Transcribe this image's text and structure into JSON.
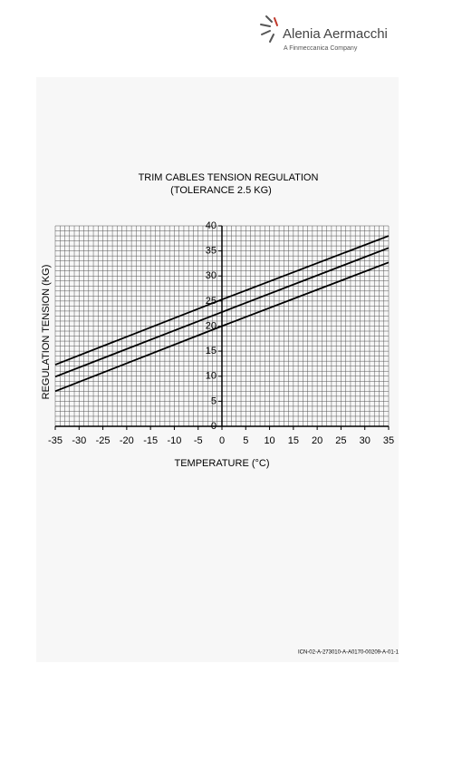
{
  "logo": {
    "name": "Alenia Aermacchi",
    "tagline": "A Finmeccanica Company"
  },
  "chart_data": {
    "type": "line",
    "title": "TRIM CABLES TENSION REGULATION",
    "subtitle": "(TOLERANCE 2.5 KG)",
    "x_label": "TEMPERATURE (°C)",
    "y_label": "REGULATION TENSION (KG)",
    "x": [
      -35,
      0,
      35
    ],
    "series": [
      {
        "color": "#000000",
        "values": [
          12.3,
          25.3,
          38.0
        ]
      },
      {
        "color": "#000000",
        "values": [
          9.9,
          22.8,
          35.6
        ]
      },
      {
        "color": "#000000",
        "values": [
          7.0,
          20.0,
          32.7
        ]
      }
    ],
    "xlim": [
      -35,
      35
    ],
    "ylim": [
      0,
      40
    ],
    "xticks": [
      -35,
      -30,
      -25,
      -20,
      -15,
      -10,
      -5,
      0,
      5,
      10,
      15,
      20,
      25,
      30,
      35
    ],
    "yticks": [
      0,
      5,
      10,
      15,
      20,
      25,
      30,
      35,
      40
    ],
    "grid": true,
    "minor_grid": 1
  },
  "figure_id": "ICN-02-A-273010-A-A0170-00209-A-01-1"
}
